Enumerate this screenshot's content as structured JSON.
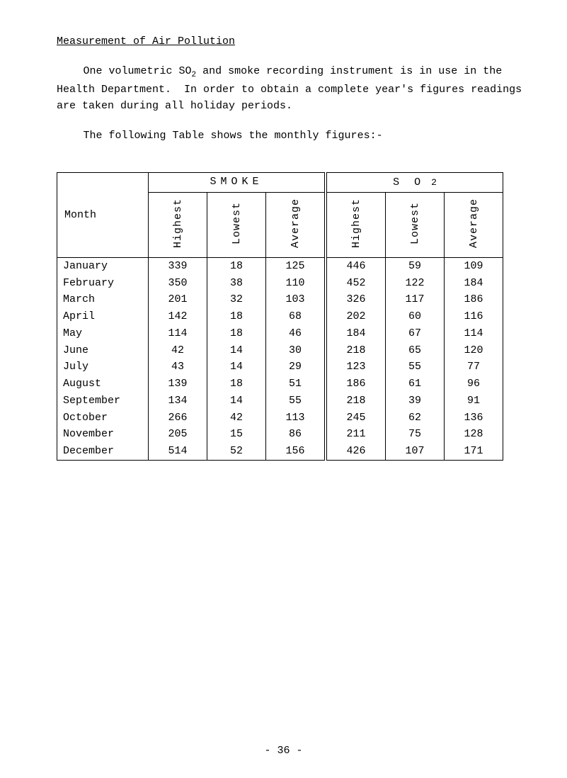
{
  "title": "Measurement of Air Pollution",
  "para1": "One volumetric SO2 and smoke recording instrument is in use in the Health Department.  In order to obtain a complete year's figures readings are taken during all holiday periods.",
  "para2": "The following Table shows the monthly figures:-",
  "table": {
    "month_header": "Month",
    "group_smoke": "SMOKE",
    "group_so2_a": "S O",
    "group_so2_b": "2",
    "col_highest": "Highest",
    "col_lowest": "Lowest",
    "col_average": "Average",
    "rows": [
      {
        "m": "January",
        "sh": "339",
        "sl": "18",
        "sa": "125",
        "oh": "446",
        "ol": "59",
        "oa": "109"
      },
      {
        "m": "February",
        "sh": "350",
        "sl": "38",
        "sa": "110",
        "oh": "452",
        "ol": "122",
        "oa": "184"
      },
      {
        "m": "March",
        "sh": "201",
        "sl": "32",
        "sa": "103",
        "oh": "326",
        "ol": "117",
        "oa": "186"
      },
      {
        "m": "April",
        "sh": "142",
        "sl": "18",
        "sa": "68",
        "oh": "202",
        "ol": "60",
        "oa": "116"
      },
      {
        "m": "May",
        "sh": "114",
        "sl": "18",
        "sa": "46",
        "oh": "184",
        "ol": "67",
        "oa": "114"
      },
      {
        "m": "June",
        "sh": "42",
        "sl": "14",
        "sa": "30",
        "oh": "218",
        "ol": "65",
        "oa": "120"
      },
      {
        "m": "July",
        "sh": "43",
        "sl": "14",
        "sa": "29",
        "oh": "123",
        "ol": "55",
        "oa": "77"
      },
      {
        "m": "August",
        "sh": "139",
        "sl": "18",
        "sa": "51",
        "oh": "186",
        "ol": "61",
        "oa": "96"
      },
      {
        "m": "September",
        "sh": "134",
        "sl": "14",
        "sa": "55",
        "oh": "218",
        "ol": "39",
        "oa": "91"
      },
      {
        "m": "October",
        "sh": "266",
        "sl": "42",
        "sa": "113",
        "oh": "245",
        "ol": "62",
        "oa": "136"
      },
      {
        "m": "November",
        "sh": "205",
        "sl": "15",
        "sa": "86",
        "oh": "211",
        "ol": "75",
        "oa": "128"
      },
      {
        "m": "December",
        "sh": "514",
        "sl": "52",
        "sa": "156",
        "oh": "426",
        "ol": "107",
        "oa": "171"
      }
    ]
  },
  "footer": "- 36 -"
}
